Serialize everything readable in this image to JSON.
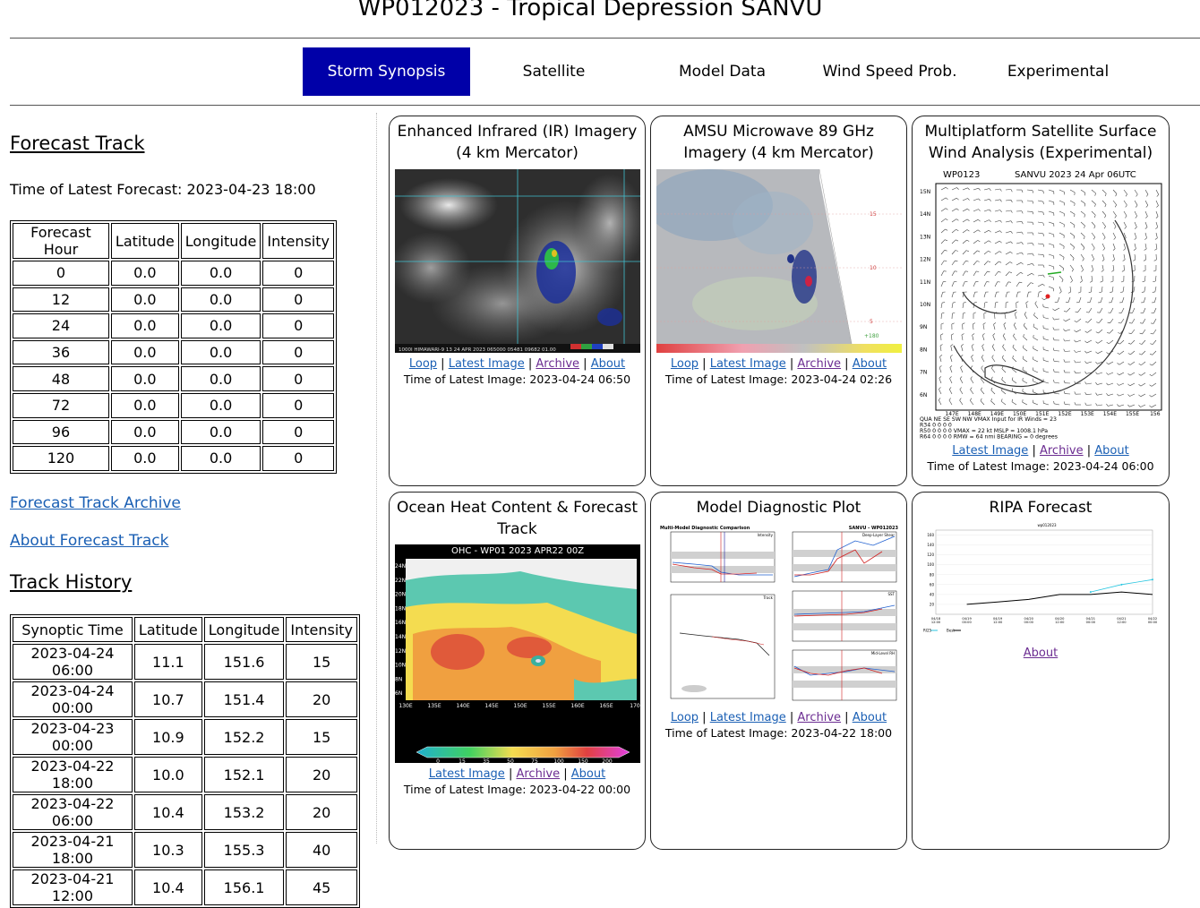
{
  "page_title": "WP012023 - Tropical Depression SANVU",
  "nav": {
    "tabs": [
      {
        "label": "Storm Synopsis",
        "active": true
      },
      {
        "label": "Satellite"
      },
      {
        "label": "Model Data"
      },
      {
        "label": "Wind Speed Prob."
      },
      {
        "label": "Experimental"
      }
    ],
    "active_color": "#0000a8"
  },
  "forecast_track": {
    "heading": "Forecast Track",
    "latest_time": "Time of Latest Forecast: 2023-04-23 18:00",
    "columns": [
      "Forecast Hour",
      "Latitude",
      "Longitude",
      "Intensity"
    ],
    "rows": [
      [
        "0",
        "0.0",
        "0.0",
        "0"
      ],
      [
        "12",
        "0.0",
        "0.0",
        "0"
      ],
      [
        "24",
        "0.0",
        "0.0",
        "0"
      ],
      [
        "36",
        "0.0",
        "0.0",
        "0"
      ],
      [
        "48",
        "0.0",
        "0.0",
        "0"
      ],
      [
        "72",
        "0.0",
        "0.0",
        "0"
      ],
      [
        "96",
        "0.0",
        "0.0",
        "0"
      ],
      [
        "120",
        "0.0",
        "0.0",
        "0"
      ]
    ],
    "archive_link": "Forecast Track Archive",
    "about_link": "About Forecast Track"
  },
  "track_history": {
    "heading": "Track History",
    "columns": [
      "Synoptic Time",
      "Latitude",
      "Longitude",
      "Intensity"
    ],
    "rows": [
      [
        "2023-04-24 06:00",
        "11.1",
        "151.6",
        "15"
      ],
      [
        "2023-04-24 00:00",
        "10.7",
        "151.4",
        "20"
      ],
      [
        "2023-04-23 00:00",
        "10.9",
        "152.2",
        "15"
      ],
      [
        "2023-04-22 18:00",
        "10.0",
        "152.1",
        "20"
      ],
      [
        "2023-04-22 06:00",
        "10.4",
        "153.2",
        "20"
      ],
      [
        "2023-04-21 18:00",
        "10.3",
        "155.3",
        "40"
      ],
      [
        "2023-04-21 12:00",
        "10.4",
        "156.1",
        "45"
      ]
    ]
  },
  "link_labels": {
    "loop": "Loop",
    "latest": "Latest Image",
    "archive": "Archive",
    "about": "About",
    "sep": " | "
  },
  "cards": {
    "ir": {
      "title": "Enhanced Infrared (IR) Imagery (4 km Mercator)",
      "time": "Time of Latest Image: 2023-04-24 06:50",
      "caption": "1000I HIMAWARI-9 13 24 APR 2023 065000 05481 09682 01.00"
    },
    "amsu": {
      "title": "AMSU Microwave 89 GHz Imagery (4 km Mercator)",
      "time": "Time of Latest Image: 2023-04-24 02:26",
      "grid_labels": [
        "15",
        "10",
        "5",
        "+180"
      ]
    },
    "wind": {
      "title": "Multiplatform Satellite Surface Wind Analysis (Experimental)",
      "time": "Time of Latest Image: 2023-04-24 06:00",
      "header_left": "WP0123",
      "header_right": "SANVU  2023  24 Apr  06UTC",
      "lat_labels": [
        "15N",
        "14N",
        "13N",
        "12N",
        "11N",
        "10N",
        "9N",
        "8N",
        "7N",
        "6N"
      ],
      "lon_labels": [
        "147E",
        "148E",
        "149E",
        "150E",
        "151E",
        "152E",
        "153E",
        "154E",
        "155E",
        "156"
      ],
      "table_lines": [
        "QUA   NE  SE  SW  NW  VMAX Input for IR Winds =    23",
        "R34    0   0   0   0",
        "R50    0   0   0   0   VMAX =    22 kt  MSLP = 1008.1 hPa",
        "R64    0   0   0   0   RMW  =    64 nmi  BEARING =    0 degrees"
      ]
    },
    "ohc": {
      "title": "Ocean Heat Content & Forecast Track",
      "time": "Time of Latest Image: 2023-04-22 00:00",
      "plot_title": "OHC - WP01 2023 APR22 00Z",
      "lat_labels": [
        "24N",
        "22N",
        "20N",
        "18N",
        "16N",
        "14N",
        "12N",
        "10N",
        "8N",
        "6N"
      ],
      "lon_labels": [
        "130E",
        "135E",
        "140E",
        "145E",
        "150E",
        "155E",
        "160E",
        "165E",
        "170"
      ],
      "scale_labels": [
        "0",
        "15",
        "35",
        "50",
        "75",
        "100",
        "150",
        "200"
      ]
    },
    "diag": {
      "title": "Model Diagnostic Plot",
      "time": "Time of Latest Image: 2023-04-22 18:00",
      "plot_left_title": "Multi-Model Diagnostic Comparison",
      "plot_right_title": "SANVU - WP012023",
      "panels": [
        "Intensity",
        "Deep-Layer Shear",
        "Track",
        "SST",
        "Mid-Level RH"
      ]
    },
    "ripa": {
      "title": "RIPA Forecast",
      "about": "About",
      "chart_title": "wp012023",
      "x_ticks": [
        "04/18 12:00",
        "04/19 00:00",
        "04/19 12:00",
        "04/20 00:00",
        "04/20 12:00",
        "04/21 00:00",
        "04/21 12:00",
        "04/22 00:00"
      ],
      "y_ticks": [
        "160",
        "140",
        "120",
        "100",
        "80",
        "60",
        "40",
        "20"
      ],
      "legend": [
        "RI25",
        "Best"
      ]
    }
  },
  "chart_data": {
    "type": "line",
    "title": "wp012023",
    "categories": [
      "04/18 12:00",
      "04/19 00:00",
      "04/19 12:00",
      "04/20 00:00",
      "04/20 12:00",
      "04/21 00:00",
      "04/21 12:00",
      "04/22 00:00"
    ],
    "series": [
      {
        "name": "Best",
        "color": "#000000",
        "values": [
          null,
          20,
          25,
          30,
          40,
          40,
          45,
          40
        ]
      },
      {
        "name": "RI25",
        "color": "#29c6e0",
        "values": [
          null,
          null,
          null,
          null,
          null,
          45,
          60,
          70
        ]
      }
    ],
    "ylim": [
      0,
      170
    ]
  }
}
